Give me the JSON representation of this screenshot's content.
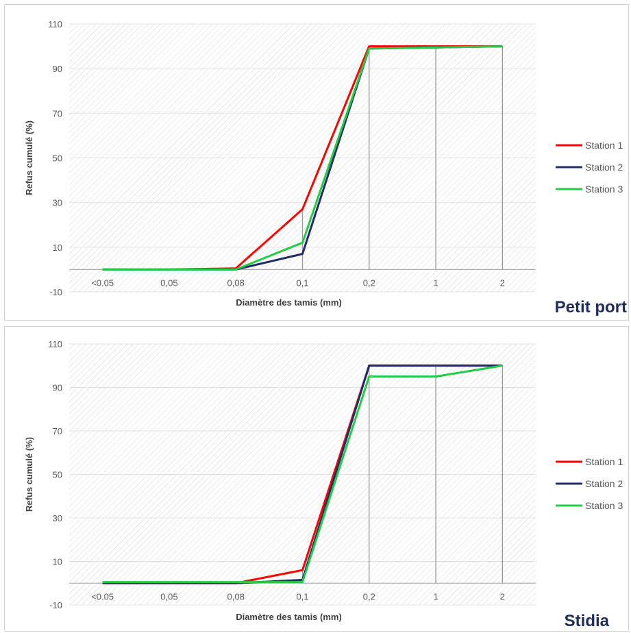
{
  "chart_data": [
    {
      "type": "line",
      "location_label": "Petit port",
      "xlabel": "Diamètre des tamis (mm)",
      "ylabel": "Refus cumulé (%)",
      "ylim": [
        -10,
        110
      ],
      "yticks": [
        -10,
        10,
        30,
        50,
        70,
        90,
        110
      ],
      "categories": [
        "<0.05",
        "0,05",
        "0,08",
        "0,1",
        "0,2",
        "1",
        "2"
      ],
      "series": [
        {
          "name": "Station 1",
          "color": "#ff0000",
          "values": [
            0,
            0,
            0.5,
            27,
            100,
            100,
            100
          ]
        },
        {
          "name": "Station 2",
          "color": "#1f2d6b",
          "values": [
            0,
            0,
            0,
            7,
            99,
            99.5,
            100
          ]
        },
        {
          "name": "Station 3",
          "color": "#22cc44",
          "values": [
            0,
            0,
            0,
            12,
            99,
            99.5,
            100
          ]
        }
      ],
      "legend_position": "right",
      "grid": true
    },
    {
      "type": "line",
      "location_label": "Stidia",
      "xlabel": "Diamètre des tamis (mm)",
      "ylabel": "Refus cumulé (%)",
      "ylim": [
        -10,
        110
      ],
      "yticks": [
        -10,
        10,
        30,
        50,
        70,
        90,
        110
      ],
      "categories": [
        "<0.05",
        "0,05",
        "0,08",
        "0,1",
        "0,2",
        "1",
        "2"
      ],
      "series": [
        {
          "name": "Station 1",
          "color": "#ff0000",
          "values": [
            0,
            0,
            0,
            6,
            100,
            100,
            100
          ]
        },
        {
          "name": "Station 2",
          "color": "#1f2d6b",
          "values": [
            0,
            0,
            0,
            1.5,
            100,
            100,
            100
          ]
        },
        {
          "name": "Station 3",
          "color": "#22cc44",
          "values": [
            0.5,
            0.5,
            0.5,
            0.5,
            95,
            95,
            100
          ]
        }
      ],
      "legend_position": "right",
      "grid": true
    }
  ]
}
